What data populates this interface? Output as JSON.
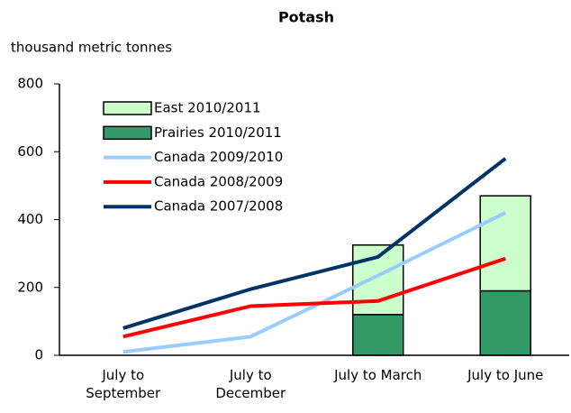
{
  "chart_data": {
    "type": "bar-line",
    "title": "Potash",
    "ylabel": "thousand metric tonnes",
    "categories": [
      "July to September",
      "July to December",
      "July to March",
      "July to June"
    ],
    "ylim": [
      0,
      800
    ],
    "yticks": [
      0,
      200,
      400,
      600,
      800
    ],
    "grid": false,
    "legend": "upper left",
    "series": [
      {
        "name": "East 2010/2011",
        "type": "bar",
        "stack": "top",
        "color": "#ccffcc",
        "values": [
          null,
          null,
          205,
          280
        ]
      },
      {
        "name": "Prairies 2010/2011",
        "type": "bar",
        "stack": "bottom",
        "color": "#339966",
        "values": [
          null,
          null,
          120,
          190
        ]
      },
      {
        "name": "Canada 2009/2010",
        "type": "line",
        "color": "#99ccff",
        "values": [
          10,
          55,
          235,
          420
        ]
      },
      {
        "name": "Canada 2008/2009",
        "type": "line",
        "color": "#ff0000",
        "values": [
          55,
          145,
          160,
          285
        ]
      },
      {
        "name": "Canada 2007/2008",
        "type": "line",
        "color": "#003366",
        "values": [
          80,
          195,
          290,
          580
        ]
      }
    ]
  }
}
